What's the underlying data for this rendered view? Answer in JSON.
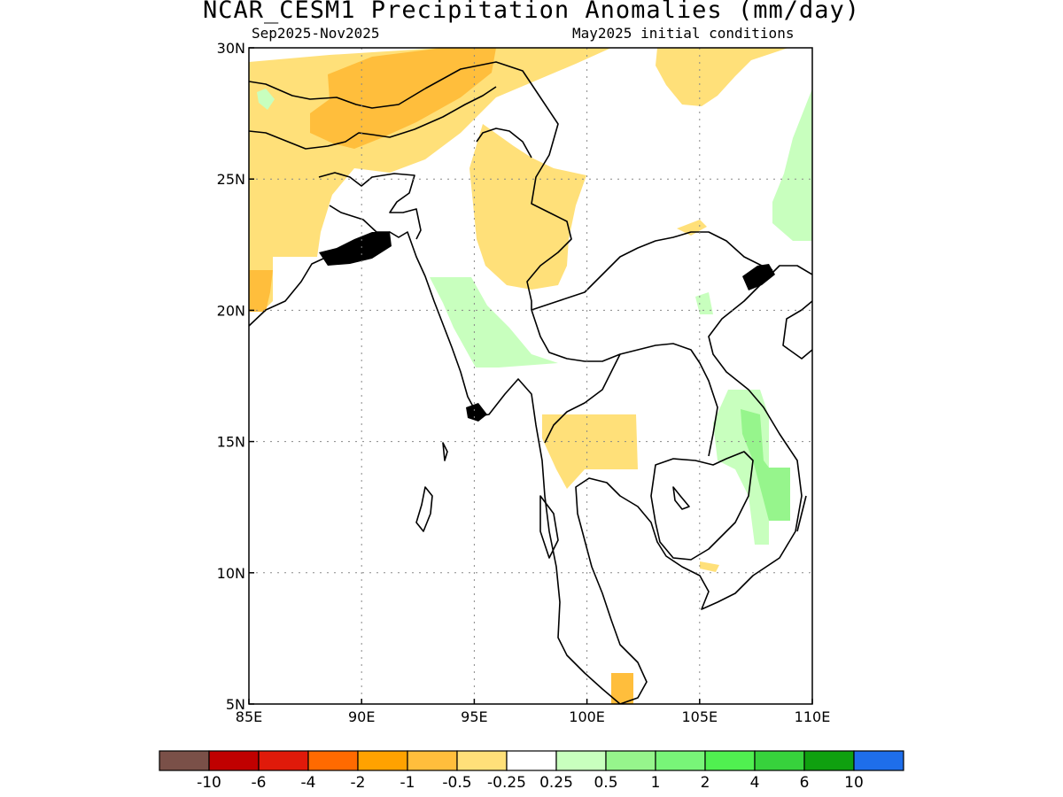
{
  "title": "NCAR_CESM1 Precipitation Anomalies (mm/day)",
  "subtitle_left": "Sep2025-Nov2025",
  "subtitle_right": "May2025 initial conditions",
  "map": {
    "lon_range": [
      85,
      110
    ],
    "lat_range": [
      5,
      30
    ],
    "lon_ticks": [
      "85E",
      "90E",
      "95E",
      "100E",
      "105E",
      "110E"
    ],
    "lat_ticks": [
      "5N",
      "10N",
      "15N",
      "20N",
      "25N",
      "30N"
    ],
    "grid": "dotted",
    "region": "Southeast Asia / Bay of Bengal"
  },
  "colorbar": {
    "colors": [
      "#7a5048",
      "#c00000",
      "#e01a0a",
      "#ff6a00",
      "#ffa200",
      "#ffbe3c",
      "#ffe079",
      "#ffffff",
      "#c8ffbe",
      "#96f58c",
      "#78f578",
      "#50f050",
      "#37d23c",
      "#0fa00f",
      "#1e6eeb"
    ],
    "labels": [
      "-10",
      "-6",
      "-4",
      "-2",
      "-1",
      "-0.5",
      "-0.25",
      "0.25",
      "0.5",
      "1",
      "2",
      "4",
      "6",
      "10"
    ]
  },
  "anomaly_areas": [
    {
      "category": "-0.5",
      "color": "#ffbe3c"
    },
    {
      "category": "-0.25",
      "color": "#ffe079"
    },
    {
      "category": "0.25",
      "color": "#c8ffbe"
    },
    {
      "category": "0.5",
      "color": "#96f58c"
    }
  ]
}
